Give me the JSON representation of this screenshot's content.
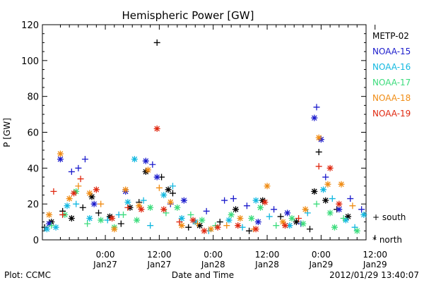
{
  "chart_data": {
    "type": "scatter",
    "title": "Hemispheric Power [GW]",
    "ylabel": "P [GW]",
    "xlabel": "Date and Time",
    "footer_left": "Plot: CCMC",
    "footer_right": "2012/01/29 13:40:07",
    "ylim": [
      0,
      120
    ],
    "xlim_hours": [
      -14,
      58
    ],
    "yticks": [
      0,
      20,
      40,
      60,
      80,
      100,
      120
    ],
    "xticks": [
      {
        "h": 0,
        "time": "0:00",
        "date": "Jan27"
      },
      {
        "h": 12,
        "time": "12:00",
        "date": "Jan27"
      },
      {
        "h": 24,
        "time": "0:00",
        "date": "Jan28"
      },
      {
        "h": 36,
        "time": "12:00",
        "date": "Jan28"
      },
      {
        "h": 48,
        "time": "0:00",
        "date": "Jan29"
      },
      {
        "h": 60,
        "time": "12:00",
        "date": "Jan29"
      }
    ],
    "legend": {
      "series_labels": [
        "METP-02",
        "NOAA-15",
        "NOAA-16",
        "NOAA-17",
        "NOAA-18",
        "NOAA-19"
      ],
      "symbol_south": "+ south",
      "symbol_north": "* north"
    },
    "colors": {
      "METP-02": "#000000",
      "NOAA-15": "#1c1ccc",
      "NOAA-16": "#12b8e0",
      "NOAA-17": "#3cdc7c",
      "NOAA-18": "#f08c14",
      "NOAA-19": "#e02810"
    },
    "series": [
      {
        "name": "METP-02",
        "points": [
          {
            "x": -13.5,
            "y": 7,
            "h": "south"
          },
          {
            "x": -12.0,
            "y": 10,
            "h": "north"
          },
          {
            "x": -9.5,
            "y": 16,
            "h": "south"
          },
          {
            "x": -7.5,
            "y": 12,
            "h": "north"
          },
          {
            "x": -5.0,
            "y": 18,
            "h": "south"
          },
          {
            "x": -3.0,
            "y": 24,
            "h": "north"
          },
          {
            "x": -1.5,
            "y": 15,
            "h": "south"
          },
          {
            "x": 1.0,
            "y": 13,
            "h": "north"
          },
          {
            "x": 3.5,
            "y": 9,
            "h": "south"
          },
          {
            "x": 5.5,
            "y": 18,
            "h": "north"
          },
          {
            "x": 7.5,
            "y": 21,
            "h": "south"
          },
          {
            "x": 9.0,
            "y": 38,
            "h": "north"
          },
          {
            "x": 11.5,
            "y": 110,
            "h": "south"
          },
          {
            "x": 12.5,
            "y": 35,
            "h": "south"
          },
          {
            "x": 14.0,
            "y": 28,
            "h": "north"
          },
          {
            "x": 15.0,
            "y": 26,
            "h": "south"
          },
          {
            "x": 18.5,
            "y": 7,
            "h": "south"
          },
          {
            "x": 21.0,
            "y": 8,
            "h": "north"
          },
          {
            "x": 25.5,
            "y": 10,
            "h": "south"
          },
          {
            "x": 29.0,
            "y": 17,
            "h": "north"
          },
          {
            "x": 32.0,
            "y": 5,
            "h": "south"
          },
          {
            "x": 35.0,
            "y": 22,
            "h": "north"
          },
          {
            "x": 39.0,
            "y": 13,
            "h": "south"
          },
          {
            "x": 42.5,
            "y": 10,
            "h": "north"
          },
          {
            "x": 45.5,
            "y": 6,
            "h": "south"
          },
          {
            "x": 46.5,
            "y": 27,
            "h": "north"
          },
          {
            "x": 47.5,
            "y": 49,
            "h": "south"
          },
          {
            "x": 49.0,
            "y": 22,
            "h": "north"
          },
          {
            "x": 51.5,
            "y": 17,
            "h": "south"
          },
          {
            "x": 54.0,
            "y": 13,
            "h": "north"
          }
        ]
      },
      {
        "name": "NOAA-15",
        "points": [
          {
            "x": -12.5,
            "y": 9,
            "h": "north"
          },
          {
            "x": -10.0,
            "y": 45,
            "h": "north"
          },
          {
            "x": -7.5,
            "y": 38,
            "h": "south"
          },
          {
            "x": -6.0,
            "y": 40,
            "h": "south"
          },
          {
            "x": -4.5,
            "y": 45,
            "h": "south"
          },
          {
            "x": -2.5,
            "y": 20,
            "h": "north"
          },
          {
            "x": 4.5,
            "y": 27,
            "h": "north"
          },
          {
            "x": 9.0,
            "y": 44,
            "h": "north"
          },
          {
            "x": 10.5,
            "y": 42,
            "h": "south"
          },
          {
            "x": 11.5,
            "y": 35,
            "h": "north"
          },
          {
            "x": 14.5,
            "y": 20,
            "h": "south"
          },
          {
            "x": 17.5,
            "y": 22,
            "h": "north"
          },
          {
            "x": 22.5,
            "y": 16,
            "h": "south"
          },
          {
            "x": 26.5,
            "y": 22,
            "h": "south"
          },
          {
            "x": 28.5,
            "y": 23,
            "h": "south"
          },
          {
            "x": 31.5,
            "y": 19,
            "h": "south"
          },
          {
            "x": 34.0,
            "y": 10,
            "h": "north"
          },
          {
            "x": 37.5,
            "y": 17,
            "h": "south"
          },
          {
            "x": 40.5,
            "y": 15,
            "h": "north"
          },
          {
            "x": 43.5,
            "y": 9,
            "h": "south"
          },
          {
            "x": 46.5,
            "y": 68,
            "h": "north"
          },
          {
            "x": 47.0,
            "y": 74,
            "h": "south"
          },
          {
            "x": 48.0,
            "y": 56,
            "h": "north"
          },
          {
            "x": 49.0,
            "y": 35,
            "h": "south"
          },
          {
            "x": 52.0,
            "y": 17,
            "h": "north"
          },
          {
            "x": 54.5,
            "y": 23,
            "h": "south"
          },
          {
            "x": 57.0,
            "y": 17,
            "h": "south"
          }
        ]
      },
      {
        "name": "NOAA-16",
        "points": [
          {
            "x": -13.0,
            "y": 6,
            "h": "north"
          },
          {
            "x": -11.0,
            "y": 7,
            "h": "north"
          },
          {
            "x": -8.5,
            "y": 19,
            "h": "north"
          },
          {
            "x": -6.5,
            "y": 20,
            "h": "south"
          },
          {
            "x": -3.5,
            "y": 12,
            "h": "north"
          },
          {
            "x": 0.5,
            "y": 11,
            "h": "south"
          },
          {
            "x": 3.0,
            "y": 14,
            "h": "south"
          },
          {
            "x": 5.0,
            "y": 21,
            "h": "north"
          },
          {
            "x": 6.5,
            "y": 45,
            "h": "north"
          },
          {
            "x": 8.5,
            "y": 22,
            "h": "south"
          },
          {
            "x": 10.0,
            "y": 8,
            "h": "south"
          },
          {
            "x": 13.0,
            "y": 25,
            "h": "north"
          },
          {
            "x": 15.0,
            "y": 30,
            "h": "south"
          },
          {
            "x": 17.0,
            "y": 12,
            "h": "north"
          },
          {
            "x": 20.0,
            "y": 10,
            "h": "north"
          },
          {
            "x": 23.0,
            "y": 5,
            "h": "south"
          },
          {
            "x": 27.5,
            "y": 11,
            "h": "north"
          },
          {
            "x": 30.5,
            "y": 7,
            "h": "south"
          },
          {
            "x": 33.5,
            "y": 22,
            "h": "north"
          },
          {
            "x": 36.5,
            "y": 13,
            "h": "south"
          },
          {
            "x": 41.0,
            "y": 8,
            "h": "north"
          },
          {
            "x": 45.0,
            "y": 15,
            "h": "south"
          },
          {
            "x": 48.5,
            "y": 28,
            "h": "north"
          },
          {
            "x": 50.5,
            "y": 23,
            "h": "south"
          },
          {
            "x": 53.5,
            "y": 11,
            "h": "north"
          },
          {
            "x": 55.5,
            "y": 7,
            "h": "south"
          },
          {
            "x": 57.5,
            "y": 14,
            "h": "north"
          }
        ]
      },
      {
        "name": "NOAA-17",
        "points": [
          {
            "x": -12.0,
            "y": 8,
            "h": "south"
          },
          {
            "x": -9.0,
            "y": 14,
            "h": "north"
          },
          {
            "x": -6.5,
            "y": 27,
            "h": "north"
          },
          {
            "x": -4.0,
            "y": 9,
            "h": "south"
          },
          {
            "x": -1.0,
            "y": 11,
            "h": "north"
          },
          {
            "x": 2.0,
            "y": 7,
            "h": "north"
          },
          {
            "x": 4.0,
            "y": 14,
            "h": "south"
          },
          {
            "x": 7.0,
            "y": 11,
            "h": "north"
          },
          {
            "x": 10.0,
            "y": 18,
            "h": "north"
          },
          {
            "x": 13.5,
            "y": 15,
            "h": "south"
          },
          {
            "x": 16.0,
            "y": 18,
            "h": "north"
          },
          {
            "x": 19.0,
            "y": 14,
            "h": "south"
          },
          {
            "x": 21.5,
            "y": 11,
            "h": "north"
          },
          {
            "x": 24.5,
            "y": 8,
            "h": "south"
          },
          {
            "x": 28.0,
            "y": 14,
            "h": "north"
          },
          {
            "x": 32.5,
            "y": 12,
            "h": "north"
          },
          {
            "x": 34.5,
            "y": 18,
            "h": "north"
          },
          {
            "x": 38.0,
            "y": 8,
            "h": "south"
          },
          {
            "x": 41.5,
            "y": 12,
            "h": "north"
          },
          {
            "x": 44.0,
            "y": 9,
            "h": "north"
          },
          {
            "x": 47.0,
            "y": 20,
            "h": "south"
          },
          {
            "x": 50.0,
            "y": 15,
            "h": "north"
          },
          {
            "x": 51.0,
            "y": 7,
            "h": "north"
          },
          {
            "x": 53.0,
            "y": 12,
            "h": "south"
          },
          {
            "x": 56.0,
            "y": 5,
            "h": "north"
          }
        ]
      },
      {
        "name": "NOAA-18",
        "points": [
          {
            "x": -12.5,
            "y": 14,
            "h": "north"
          },
          {
            "x": -10.0,
            "y": 48,
            "h": "north"
          },
          {
            "x": -8.0,
            "y": 23,
            "h": "north"
          },
          {
            "x": -6.0,
            "y": 30,
            "h": "south"
          },
          {
            "x": -3.5,
            "y": 26,
            "h": "north"
          },
          {
            "x": -1.0,
            "y": 20,
            "h": "south"
          },
          {
            "x": 2.0,
            "y": 6,
            "h": "north"
          },
          {
            "x": 4.5,
            "y": 28,
            "h": "north"
          },
          {
            "x": 7.5,
            "y": 19,
            "h": "north"
          },
          {
            "x": 9.5,
            "y": 39,
            "h": "north"
          },
          {
            "x": 12.0,
            "y": 29,
            "h": "south"
          },
          {
            "x": 14.5,
            "y": 21,
            "h": "north"
          },
          {
            "x": 17.0,
            "y": 8,
            "h": "north"
          },
          {
            "x": 20.5,
            "y": 9,
            "h": "south"
          },
          {
            "x": 23.5,
            "y": 6,
            "h": "north"
          },
          {
            "x": 27.0,
            "y": 8,
            "h": "south"
          },
          {
            "x": 30.0,
            "y": 12,
            "h": "north"
          },
          {
            "x": 33.0,
            "y": 6,
            "h": "south"
          },
          {
            "x": 36.0,
            "y": 30,
            "h": "north"
          },
          {
            "x": 39.5,
            "y": 10,
            "h": "north"
          },
          {
            "x": 44.5,
            "y": 17,
            "h": "north"
          },
          {
            "x": 47.5,
            "y": 57,
            "h": "north"
          },
          {
            "x": 49.5,
            "y": 31,
            "h": "north"
          },
          {
            "x": 52.5,
            "y": 31,
            "h": "north"
          },
          {
            "x": 55.0,
            "y": 19,
            "h": "south"
          }
        ]
      },
      {
        "name": "NOAA-19",
        "points": [
          {
            "x": -11.5,
            "y": 27,
            "h": "south"
          },
          {
            "x": -9.5,
            "y": 14,
            "h": "south"
          },
          {
            "x": -7.0,
            "y": 26,
            "h": "north"
          },
          {
            "x": -5.5,
            "y": 34,
            "h": "south"
          },
          {
            "x": -2.0,
            "y": 28,
            "h": "north"
          },
          {
            "x": 1.5,
            "y": 12,
            "h": "north"
          },
          {
            "x": 5.0,
            "y": 18,
            "h": "south"
          },
          {
            "x": 8.0,
            "y": 17,
            "h": "north"
          },
          {
            "x": 11.5,
            "y": 62,
            "h": "north"
          },
          {
            "x": 13.0,
            "y": 17,
            "h": "north"
          },
          {
            "x": 16.5,
            "y": 10,
            "h": "south"
          },
          {
            "x": 19.5,
            "y": 11,
            "h": "north"
          },
          {
            "x": 22.0,
            "y": 5,
            "h": "north"
          },
          {
            "x": 25.0,
            "y": 7,
            "h": "north"
          },
          {
            "x": 29.5,
            "y": 8,
            "h": "north"
          },
          {
            "x": 33.5,
            "y": 6,
            "h": "north"
          },
          {
            "x": 35.5,
            "y": 21,
            "h": "north"
          },
          {
            "x": 40.0,
            "y": 8,
            "h": "north"
          },
          {
            "x": 43.0,
            "y": 12,
            "h": "south"
          },
          {
            "x": 47.5,
            "y": 41,
            "h": "south"
          },
          {
            "x": 50.0,
            "y": 40,
            "h": "north"
          },
          {
            "x": 52.0,
            "y": 20,
            "h": "north"
          }
        ]
      }
    ]
  }
}
